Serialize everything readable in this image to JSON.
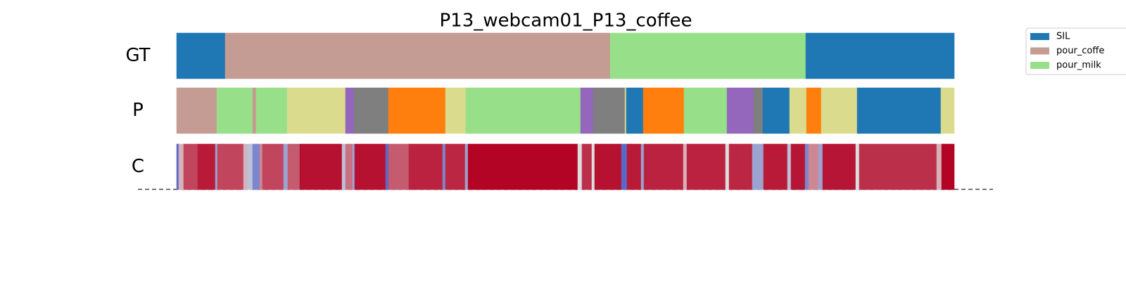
{
  "chart_data": {
    "type": "segmentation",
    "title": "P13_webcam01_P13_coffee",
    "xlim": [
      0,
      1105
    ],
    "rows": [
      {
        "name": "GT",
        "segments": [
          {
            "start": 0,
            "end": 69,
            "color": "#1f77b4"
          },
          {
            "start": 69,
            "end": 616,
            "color": "#c49c94"
          },
          {
            "start": 616,
            "end": 894,
            "color": "#98df8a"
          },
          {
            "start": 894,
            "end": 1105,
            "color": "#1f77b4"
          }
        ]
      },
      {
        "name": "P",
        "segments": [
          {
            "start": 0,
            "end": 57,
            "color": "#c49c94"
          },
          {
            "start": 57,
            "end": 108,
            "color": "#98df8a"
          },
          {
            "start": 108,
            "end": 113,
            "color": "#c49c94"
          },
          {
            "start": 113,
            "end": 157,
            "color": "#98df8a"
          },
          {
            "start": 157,
            "end": 240,
            "color": "#dbdb8d"
          },
          {
            "start": 240,
            "end": 252,
            "color": "#9467bd"
          },
          {
            "start": 252,
            "end": 301,
            "color": "#7f7f7f"
          },
          {
            "start": 301,
            "end": 382,
            "color": "#ff7f0e"
          },
          {
            "start": 382,
            "end": 411,
            "color": "#dbdb8d"
          },
          {
            "start": 411,
            "end": 574,
            "color": "#98df8a"
          },
          {
            "start": 574,
            "end": 592,
            "color": "#9467bd"
          },
          {
            "start": 592,
            "end": 637,
            "color": "#7f7f7f"
          },
          {
            "start": 637,
            "end": 639,
            "color": "#dbdb8d"
          },
          {
            "start": 639,
            "end": 663,
            "color": "#1f77b4"
          },
          {
            "start": 663,
            "end": 721,
            "color": "#ff7f0e"
          },
          {
            "start": 721,
            "end": 782,
            "color": "#98df8a"
          },
          {
            "start": 782,
            "end": 820,
            "color": "#9467bd"
          },
          {
            "start": 820,
            "end": 833,
            "color": "#7f7f7f"
          },
          {
            "start": 833,
            "end": 871,
            "color": "#1f77b4"
          },
          {
            "start": 871,
            "end": 895,
            "color": "#dbdb8d"
          },
          {
            "start": 895,
            "end": 916,
            "color": "#ff7f0e"
          },
          {
            "start": 916,
            "end": 967,
            "color": "#dbdb8d"
          },
          {
            "start": 967,
            "end": 1086,
            "color": "#1f77b4"
          },
          {
            "start": 1086,
            "end": 1105,
            "color": "#dbdb8d"
          }
        ]
      },
      {
        "name": "C",
        "colormap": [
          "#3b4cc0",
          "#dddddd",
          "#b40426"
        ],
        "segments": [
          {
            "start": 0,
            "end": 3,
            "value": 0.1
          },
          {
            "start": 3,
            "end": 10,
            "value": 0.6
          },
          {
            "start": 10,
            "end": 30,
            "value": 0.85
          },
          {
            "start": 30,
            "end": 55,
            "value": 0.95
          },
          {
            "start": 55,
            "end": 58,
            "value": 0.3
          },
          {
            "start": 58,
            "end": 95,
            "value": 0.85
          },
          {
            "start": 95,
            "end": 100,
            "value": 0.6
          },
          {
            "start": 100,
            "end": 108,
            "value": 0.4
          },
          {
            "start": 108,
            "end": 118,
            "value": 0.2
          },
          {
            "start": 118,
            "end": 122,
            "value": 0.7
          },
          {
            "start": 122,
            "end": 152,
            "value": 0.85
          },
          {
            "start": 152,
            "end": 158,
            "value": 0.3
          },
          {
            "start": 158,
            "end": 175,
            "value": 0.8
          },
          {
            "start": 175,
            "end": 235,
            "value": 0.97
          },
          {
            "start": 235,
            "end": 240,
            "value": 0.4
          },
          {
            "start": 240,
            "end": 250,
            "value": 0.75
          },
          {
            "start": 250,
            "end": 253,
            "value": 0.3
          },
          {
            "start": 253,
            "end": 297,
            "value": 0.97
          },
          {
            "start": 297,
            "end": 301,
            "value": 0.1
          },
          {
            "start": 301,
            "end": 330,
            "value": 0.8
          },
          {
            "start": 330,
            "end": 378,
            "value": 0.93
          },
          {
            "start": 378,
            "end": 382,
            "value": 0.2
          },
          {
            "start": 382,
            "end": 410,
            "value": 0.92
          },
          {
            "start": 410,
            "end": 414,
            "value": 0.3
          },
          {
            "start": 414,
            "end": 570,
            "value": 1.0
          },
          {
            "start": 570,
            "end": 576,
            "value": 0.5
          },
          {
            "start": 576,
            "end": 590,
            "value": 0.9
          },
          {
            "start": 590,
            "end": 594,
            "value": 0.5
          },
          {
            "start": 594,
            "end": 632,
            "value": 0.97
          },
          {
            "start": 632,
            "end": 640,
            "value": 0.1
          },
          {
            "start": 640,
            "end": 660,
            "value": 0.95
          },
          {
            "start": 660,
            "end": 664,
            "value": 0.3
          },
          {
            "start": 664,
            "end": 720,
            "value": 0.93
          },
          {
            "start": 720,
            "end": 725,
            "value": 0.6
          },
          {
            "start": 725,
            "end": 780,
            "value": 0.93
          },
          {
            "start": 780,
            "end": 785,
            "value": 0.5
          },
          {
            "start": 785,
            "end": 818,
            "value": 0.92
          },
          {
            "start": 818,
            "end": 834,
            "value": 0.3
          },
          {
            "start": 834,
            "end": 868,
            "value": 0.95
          },
          {
            "start": 868,
            "end": 873,
            "value": 0.4
          },
          {
            "start": 873,
            "end": 893,
            "value": 0.96
          },
          {
            "start": 893,
            "end": 898,
            "value": 0.2
          },
          {
            "start": 898,
            "end": 912,
            "value": 0.7
          },
          {
            "start": 912,
            "end": 918,
            "value": 0.3
          },
          {
            "start": 918,
            "end": 965,
            "value": 0.96
          },
          {
            "start": 965,
            "end": 970,
            "value": 0.5
          },
          {
            "start": 970,
            "end": 1080,
            "value": 0.9
          },
          {
            "start": 1080,
            "end": 1087,
            "value": 0.6
          },
          {
            "start": 1087,
            "end": 1105,
            "value": 1.0
          }
        ]
      }
    ],
    "legend": {
      "position": "upper right",
      "entries": [
        {
          "name": "SIL",
          "color": "#1f77b4"
        },
        {
          "name": "pour_coffe",
          "color": "#c49c94"
        },
        {
          "name": "pour_milk",
          "color": "#98df8a"
        }
      ]
    }
  }
}
